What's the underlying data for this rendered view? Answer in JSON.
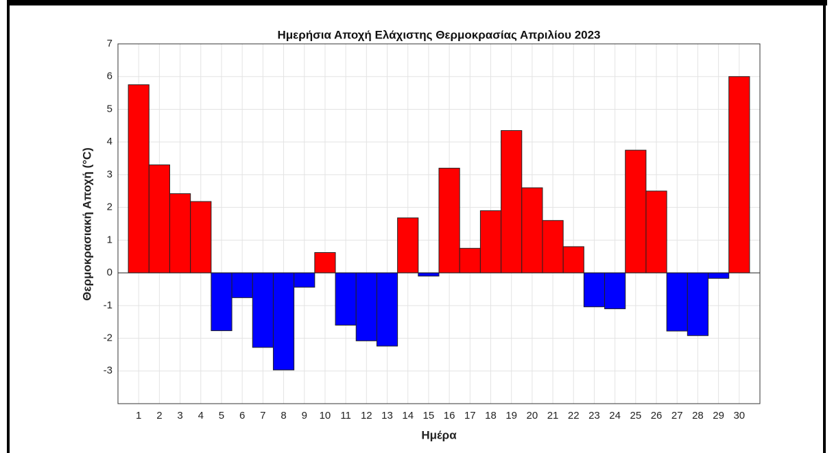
{
  "chart_data": {
    "type": "bar",
    "title": "Ημερήσια Αποχή Ελάχιστης Θερμοκρασίας Απριλίου 2023",
    "xlabel": "Ημέρα",
    "ylabel": "Θερμοκρασιακή Αποχή (°C)",
    "x": [
      1,
      2,
      3,
      4,
      5,
      6,
      7,
      8,
      9,
      10,
      11,
      12,
      13,
      14,
      15,
      16,
      17,
      18,
      19,
      20,
      21,
      22,
      23,
      24,
      25,
      26,
      27,
      28,
      29,
      30
    ],
    "values": [
      5.75,
      3.3,
      2.42,
      2.18,
      -1.77,
      -0.76,
      -2.28,
      -2.97,
      -0.44,
      0.62,
      -1.6,
      -2.08,
      -2.24,
      1.68,
      -0.1,
      3.2,
      0.75,
      1.9,
      4.35,
      2.6,
      1.6,
      0.8,
      -1.04,
      -1.1,
      3.75,
      2.5,
      -1.78,
      -1.92,
      -0.17,
      6.0
    ],
    "positive_color": "#ff0000",
    "negative_color": "#0000ff",
    "xlim": [
      0,
      31
    ],
    "xticks": [
      1,
      2,
      3,
      4,
      5,
      6,
      7,
      8,
      9,
      10,
      11,
      12,
      13,
      14,
      15,
      16,
      17,
      18,
      19,
      20,
      21,
      22,
      23,
      24,
      25,
      26,
      27,
      28,
      29,
      30
    ],
    "ylim": [
      -4,
      7
    ],
    "yticks": [
      -3,
      -2,
      -1,
      0,
      1,
      2,
      3,
      4,
      5,
      6,
      7
    ],
    "grid": true
  }
}
